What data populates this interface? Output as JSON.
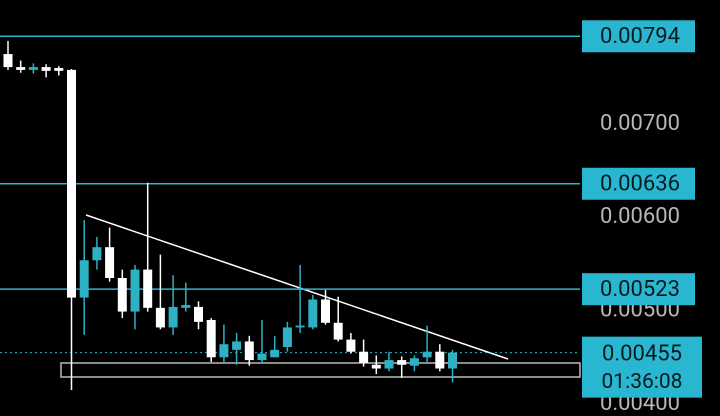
{
  "chart_data": {
    "type": "candlestick",
    "categories": [
      null,
      null,
      null,
      null,
      null,
      null,
      null,
      null,
      null,
      null,
      null,
      null,
      null,
      null,
      null,
      null,
      null,
      null,
      null,
      null,
      null,
      null,
      null,
      null,
      null,
      null,
      null,
      null,
      null,
      null,
      null,
      null,
      null,
      null,
      null,
      null
    ],
    "open": [
      0.00775,
      0.00761,
      0.00758,
      0.00761,
      0.0076,
      0.00758,
      0.00514,
      0.00554,
      0.00568,
      0.00535,
      0.00499,
      0.00544,
      0.00503,
      0.00482,
      0.00503,
      0.00504,
      0.0049,
      0.0045,
      0.00458,
      0.00467,
      0.00447,
      0.0045,
      0.00461,
      0.00482,
      0.00482,
      0.00512,
      0.00487,
      0.00469,
      0.00456,
      0.00442,
      0.00438,
      0.00447,
      0.00441,
      0.0045,
      0.00456,
      0.00438
    ],
    "high": [
      0.00789,
      0.00768,
      0.00765,
      0.00764,
      0.00762,
      0.00759,
      0.00597,
      0.00579,
      0.00589,
      0.00544,
      0.00549,
      0.00637,
      0.0056,
      0.00538,
      0.0053,
      0.0051,
      0.00492,
      0.00485,
      0.00476,
      0.00473,
      0.0049,
      0.00473,
      0.00488,
      0.00549,
      0.00517,
      0.00522,
      0.00515,
      0.00476,
      0.00469,
      0.00452,
      0.00456,
      0.00451,
      0.00452,
      0.00484,
      0.00464,
      0.00458
    ],
    "low": [
      0.00758,
      0.00755,
      0.00754,
      0.0075,
      0.00752,
      0.00415,
      0.00474,
      0.00544,
      0.00531,
      0.00492,
      0.0048,
      0.00499,
      0.0048,
      0.00474,
      0.00499,
      0.0048,
      0.00445,
      0.00445,
      0.00442,
      0.00441,
      0.00443,
      0.0045,
      0.00456,
      0.00476,
      0.0048,
      0.00485,
      0.00467,
      0.00454,
      0.0044,
      0.00432,
      0.00435,
      0.00428,
      0.00435,
      0.00444,
      0.00435,
      0.00423
    ],
    "close": [
      0.00761,
      0.00758,
      0.00761,
      0.00757,
      0.00757,
      0.00514,
      0.00554,
      0.00568,
      0.00535,
      0.00499,
      0.00544,
      0.00503,
      0.00482,
      0.00504,
      0.00506,
      0.00488,
      0.0045,
      0.00464,
      0.00467,
      0.00447,
      0.00454,
      0.00458,
      0.00482,
      0.00484,
      0.00512,
      0.00487,
      0.00469,
      0.00456,
      0.00444,
      0.00438,
      0.00447,
      0.00442,
      0.00449,
      0.00456,
      0.00438,
      0.00455
    ],
    "up_color": "#2fb1c4",
    "down_color": "#ffffff",
    "ylim": [
      0.003871,
      0.008329
    ],
    "yticks": [
      {
        "value": 0.007,
        "label": "0.00700"
      },
      {
        "value": 0.006,
        "label": "0.00600"
      },
      {
        "value": 0.005,
        "label": "0.00500"
      },
      {
        "value": 0.004,
        "label": "0.00400"
      }
    ],
    "levels": [
      {
        "value": 0.00794,
        "label": "0.00794"
      },
      {
        "value": 0.00636,
        "label": "0.00636"
      },
      {
        "value": 0.00523,
        "label": "0.00523"
      }
    ],
    "level_color": "#29b6d0",
    "current_price": {
      "value": 0.00455,
      "label": "0.00455"
    },
    "countdown": "01:36:08"
  }
}
